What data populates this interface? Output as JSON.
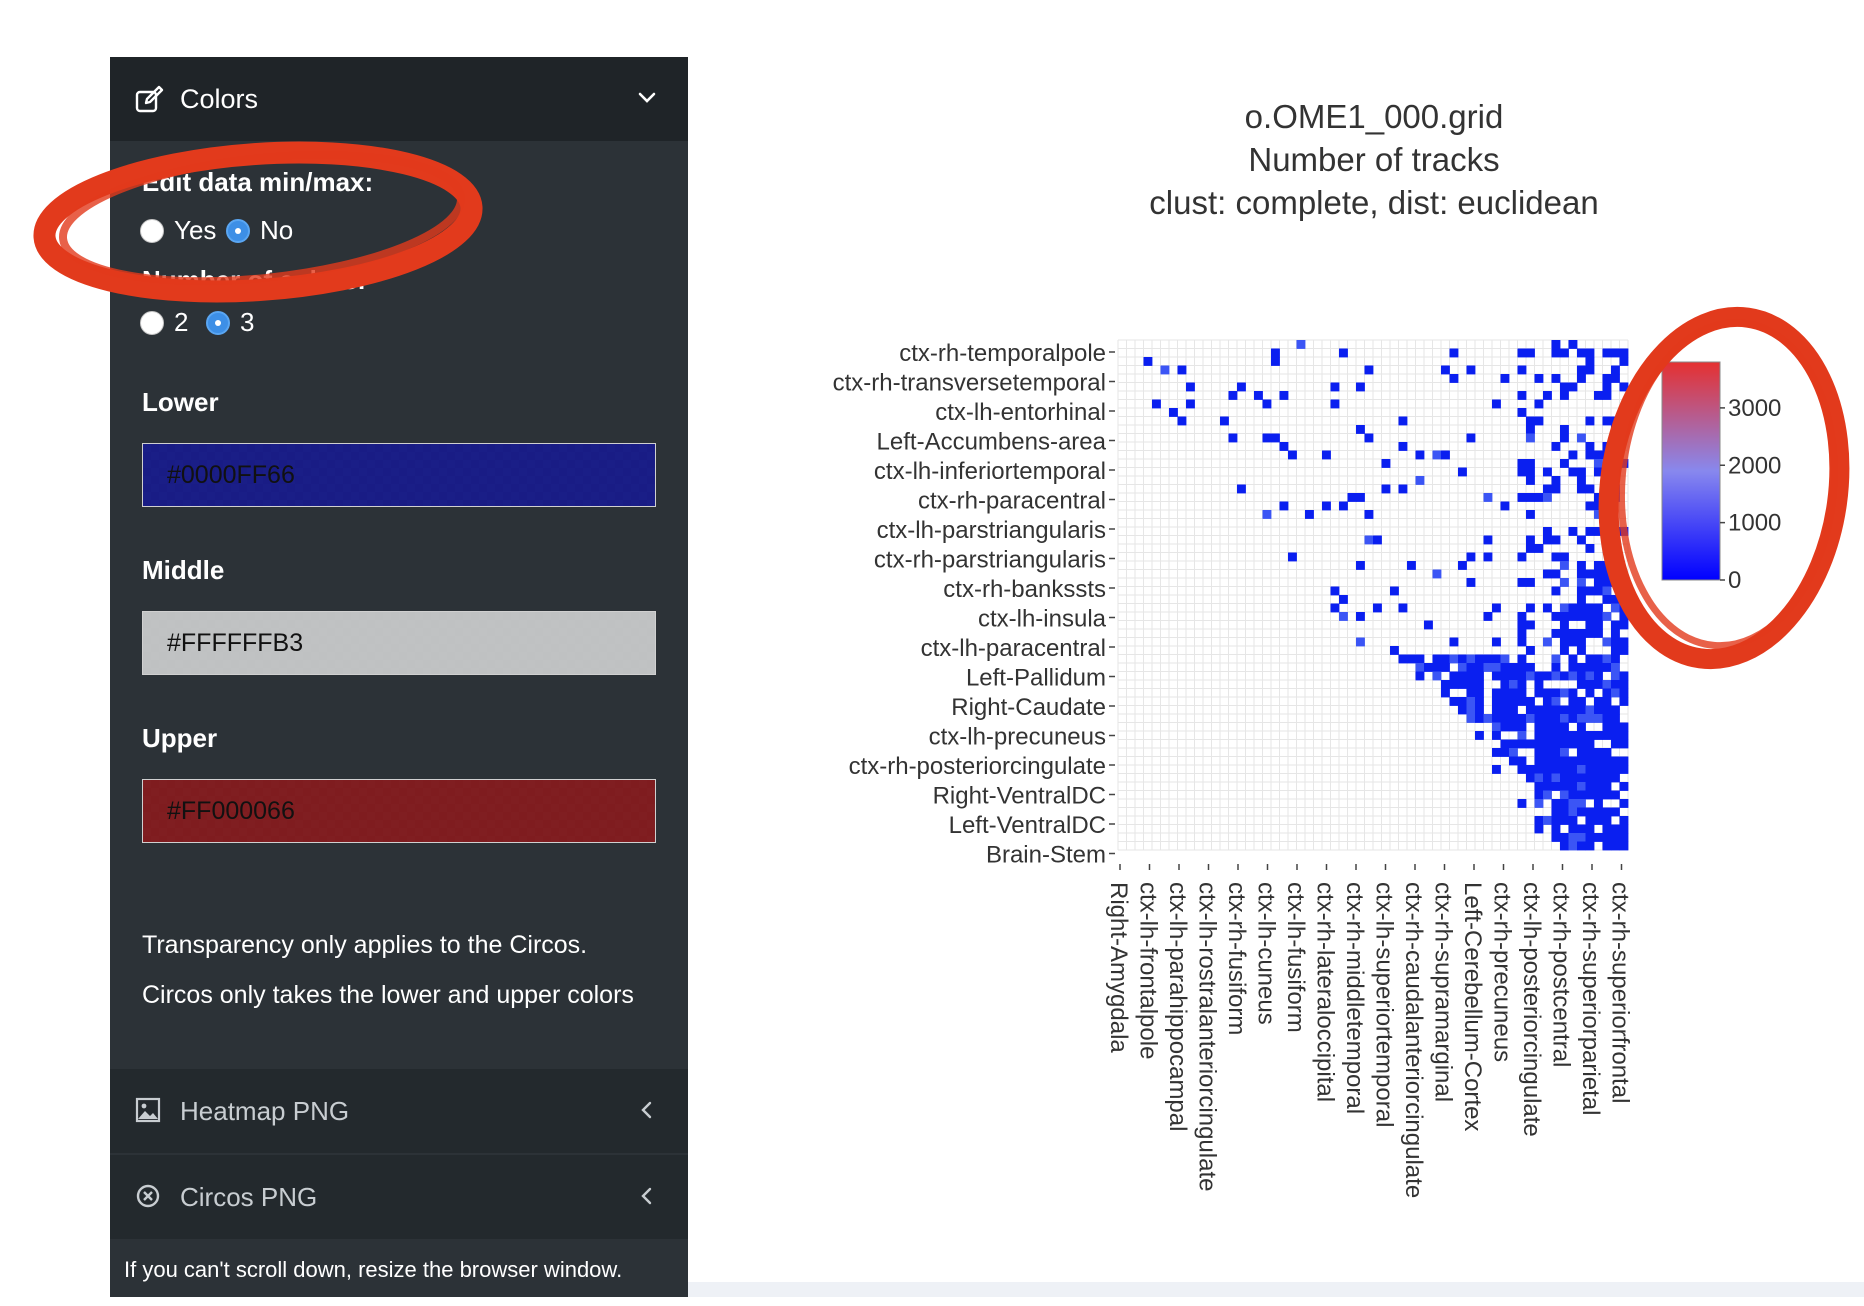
{
  "sidebar": {
    "colors_section": {
      "title": "Colors",
      "edit_minmax": {
        "label": "Edit data min/max:",
        "options": [
          "Yes",
          "No"
        ],
        "selected": "No"
      },
      "num_colors": {
        "label": "Number of colors:",
        "options": [
          "2",
          "3"
        ],
        "selected": "3"
      },
      "lower": {
        "label": "Lower",
        "value": "#0000FF66",
        "swatch": "#0000FF66"
      },
      "middle": {
        "label": "Middle",
        "value": "#FFFFFFB3",
        "swatch": "#FFFFFFB3"
      },
      "upper": {
        "label": "Upper",
        "value": "#FF000066",
        "swatch": "#FF000066"
      },
      "notes": [
        "Transparency only applies to the Circos.",
        "Circos only takes the lower and upper colors"
      ]
    },
    "sections": [
      {
        "title": "Heatmap PNG",
        "icon": "image-icon"
      },
      {
        "title": "Circos PNG",
        "icon": "circle-x-icon"
      }
    ],
    "footer": "If you can't scroll down, resize the browser window."
  },
  "colors": {
    "sidebar_bg": "#2c3237",
    "header_bg": "#1f2428",
    "annotation": "#e23a1c",
    "low": "#0000ff",
    "high": "#e53030"
  },
  "chart_data": {
    "type": "heatmap",
    "title": [
      "o.OME1_000.grid",
      "Number of tracks",
      "clust: complete, dist: euclidean"
    ],
    "y_labels": [
      "ctx-rh-temporalpole",
      "ctx-rh-transversetemporal",
      "ctx-lh-entorhinal",
      "Left-Accumbens-area",
      "ctx-lh-inferiortemporal",
      "ctx-rh-paracentral",
      "ctx-lh-parstriangularis",
      "ctx-rh-parstriangularis",
      "ctx-rh-bankssts",
      "ctx-lh-insula",
      "ctx-lh-paracentral",
      "Left-Pallidum",
      "Right-Caudate",
      "ctx-lh-precuneus",
      "ctx-rh-posteriorcingulate",
      "Right-VentralDC",
      "Left-VentralDC",
      "Brain-Stem"
    ],
    "x_labels": [
      "Right-Amygdala",
      "ctx-lh-frontalpole",
      "ctx-lh-parahippocampal",
      "ctx-lh-rostralanteriorcingulate",
      "ctx-rh-fusiform",
      "ctx-lh-cuneus",
      "ctx-lh-fusiform",
      "ctx-rh-lateraloccipital",
      "ctx-rh-middletemporal",
      "ctx-lh-superiortemporal",
      "ctx-rh-caudalanteriorcingulate",
      "ctx-rh-supramarginal",
      "Left-Cerebellum-Cortex",
      "ctx-rh-precuneus",
      "ctx-lh-posteriorcingulate",
      "ctx-rh-postcentral",
      "ctx-rh-superiorparietal",
      "ctx-rh-superiorfrontal"
    ],
    "colorbar": {
      "min": 0,
      "max": 3800,
      "ticks": [
        "0",
        "1000",
        "2000",
        "3000"
      ],
      "colors": [
        "#0000ff",
        "#8888ee",
        "#e53030"
      ]
    },
    "grid": true
  }
}
